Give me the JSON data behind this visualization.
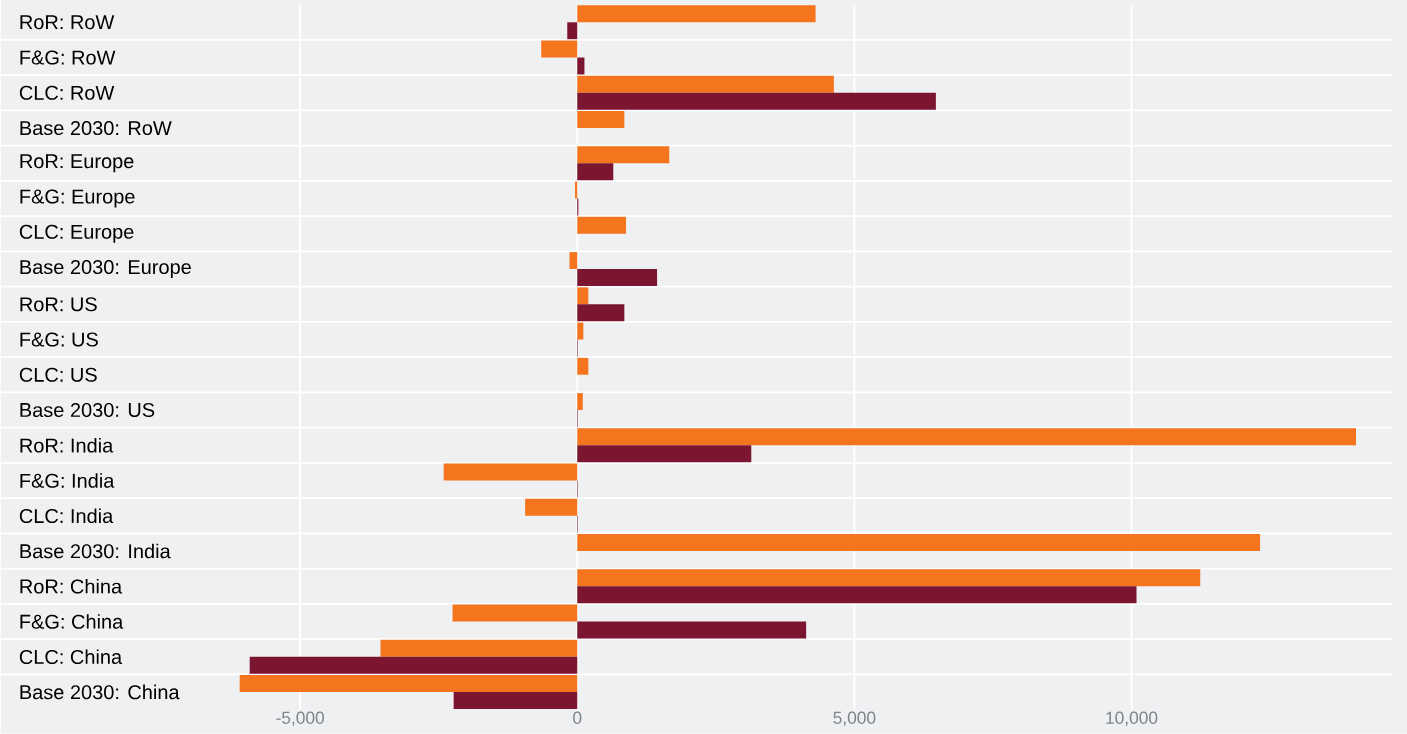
{
  "chart_data": {
    "type": "bar",
    "orientation": "horizontal",
    "categories": [
      "RoR: RoW",
      "F&G: RoW",
      "CLC: RoW",
      "Base 2030: RoW",
      "RoR: Europe",
      "F&G: Europe",
      "CLC: Europe",
      "Base 2030: Europe",
      "RoR: US",
      "F&G: US",
      "CLC: US",
      "Base 2030: US",
      "RoR: India",
      "F&G: India",
      "CLC: India",
      "Base 2030: India",
      "RoR: China",
      "F&G: China",
      "CLC: China",
      "Base 2030: China"
    ],
    "series": [
      {
        "color": "#f4751e",
        "values": [
          4300,
          -650,
          4630,
          850,
          1660,
          -40,
          880,
          -140,
          200,
          110,
          200,
          100,
          14050,
          -2410,
          -940,
          12320,
          11240,
          -2250,
          -3550,
          -6090
        ]
      },
      {
        "color": "#7b1530",
        "values": [
          -180,
          130,
          6470,
          0,
          650,
          20,
          0,
          1440,
          850,
          10,
          0,
          10,
          3140,
          10,
          10,
          0,
          10090,
          4130,
          -5910,
          -2230
        ]
      }
    ],
    "xlim": [
      -10400,
      14700
    ],
    "xticks": [
      {
        "value": -5000,
        "label": "-5,000"
      },
      0,
      {
        "value": 5000,
        "label": "5,000"
      },
      {
        "value": 10000,
        "label": "10,000"
      }
    ],
    "grid": true
  }
}
